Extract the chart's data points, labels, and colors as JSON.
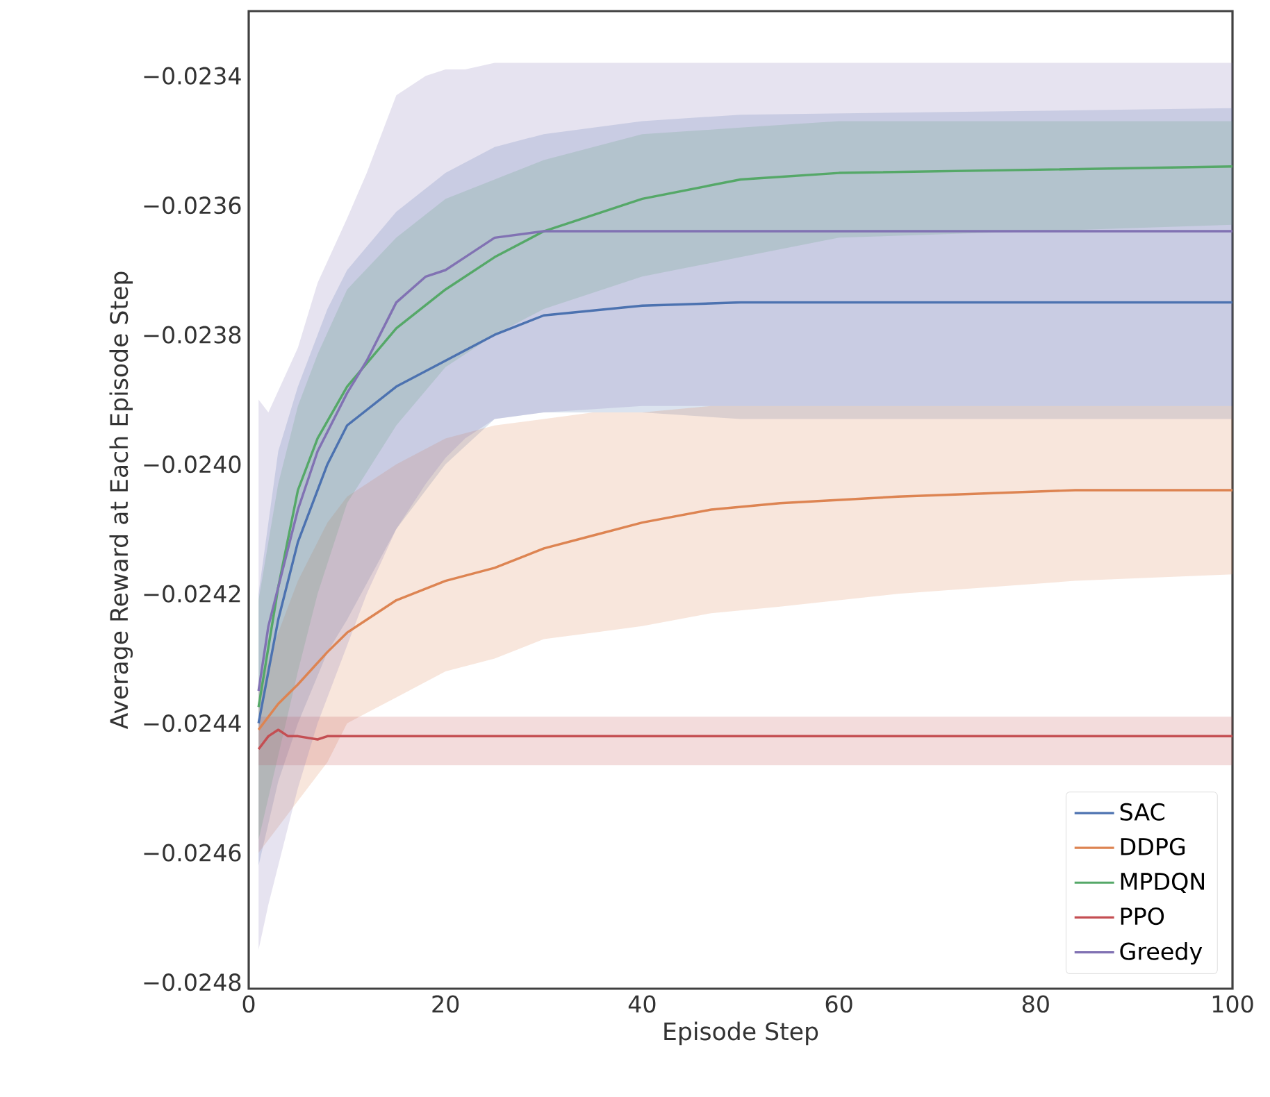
{
  "chart_data": {
    "type": "line",
    "xlabel": "Episode Step",
    "ylabel": "Average Reward at Each Episode Step",
    "xlim": [
      0,
      100
    ],
    "xticks": [
      0,
      20,
      40,
      60,
      80,
      100
    ],
    "ylim": [
      -0.02481,
      -0.0233
    ],
    "yticks": [
      {
        "value": -0.0248,
        "label": "−0.0248"
      },
      {
        "value": -0.0246,
        "label": "−0.0246"
      },
      {
        "value": -0.0244,
        "label": "−0.0244"
      },
      {
        "value": -0.0242,
        "label": "−0.0242"
      },
      {
        "value": -0.024,
        "label": "−0.0240"
      },
      {
        "value": -0.0238,
        "label": "−0.0238"
      },
      {
        "value": -0.0236,
        "label": "−0.0236"
      },
      {
        "value": -0.0234,
        "label": "−0.0234"
      }
    ],
    "grid": false,
    "legend": "bottom right",
    "series": [
      {
        "name": "SAC",
        "color": "#4c72b0",
        "x": [
          1,
          3,
          5,
          8,
          10,
          15,
          20,
          25,
          30,
          40,
          50,
          100
        ],
        "values": [
          -0.0244,
          -0.02424,
          -0.02412,
          -0.024,
          -0.02394,
          -0.02388,
          -0.02384,
          -0.0238,
          -0.02377,
          -0.023755,
          -0.02375,
          -0.02375
        ],
        "upper": [
          -0.0242,
          -0.02398,
          -0.02388,
          -0.02376,
          -0.0237,
          -0.02361,
          -0.02355,
          -0.02351,
          -0.02349,
          -0.02347,
          -0.02346,
          -0.02345
        ],
        "lower": [
          -0.02462,
          -0.02449,
          -0.0244,
          -0.02429,
          -0.02424,
          -0.0241,
          -0.024,
          -0.02393,
          -0.02392,
          -0.02392,
          -0.02393,
          -0.02393
        ]
      },
      {
        "name": "DDPG",
        "color": "#dd8452",
        "x": [
          1,
          3,
          5,
          8,
          10,
          15,
          20,
          25,
          30,
          35,
          40,
          47,
          54,
          66,
          84,
          100
        ],
        "values": [
          -0.02441,
          -0.02437,
          -0.02434,
          -0.02429,
          -0.02426,
          -0.02421,
          -0.02418,
          -0.02416,
          -0.02413,
          -0.02411,
          -0.02409,
          -0.02407,
          -0.02406,
          -0.02405,
          -0.02404,
          -0.02404
        ],
        "upper": [
          -0.02435,
          -0.02426,
          -0.02418,
          -0.02409,
          -0.02405,
          -0.024,
          -0.02396,
          -0.02394,
          -0.02393,
          -0.02392,
          -0.02392,
          -0.02391,
          -0.02391,
          -0.02391,
          -0.02391,
          -0.02391
        ],
        "lower": [
          -0.0246,
          -0.02456,
          -0.02452,
          -0.02446,
          -0.0244,
          -0.02436,
          -0.02432,
          -0.0243,
          -0.02427,
          -0.02426,
          -0.02425,
          -0.02423,
          -0.02422,
          -0.0242,
          -0.02418,
          -0.02417
        ]
      },
      {
        "name": "MPDQN",
        "color": "#55a868",
        "x": [
          1,
          3,
          5,
          7,
          10,
          15,
          20,
          25,
          30,
          40,
          50,
          60,
          100
        ],
        "values": [
          -0.024375,
          -0.02419,
          -0.02404,
          -0.02396,
          -0.02388,
          -0.02379,
          -0.02373,
          -0.02368,
          -0.02364,
          -0.02359,
          -0.02356,
          -0.02355,
          -0.02354
        ],
        "upper": [
          -0.02421,
          -0.02403,
          -0.02391,
          -0.02383,
          -0.02373,
          -0.02365,
          -0.02359,
          -0.02356,
          -0.02353,
          -0.02349,
          -0.02348,
          -0.02347,
          -0.02347
        ],
        "lower": [
          -0.02458,
          -0.02445,
          -0.02432,
          -0.0242,
          -0.02406,
          -0.02394,
          -0.02385,
          -0.0238,
          -0.02376,
          -0.02371,
          -0.02368,
          -0.02365,
          -0.02363
        ]
      },
      {
        "name": "PPO",
        "color": "#c44e52",
        "x": [
          1,
          2,
          3,
          4,
          5,
          7,
          8,
          10,
          20,
          40,
          60,
          80,
          100
        ],
        "values": [
          -0.02444,
          -0.02442,
          -0.02441,
          -0.02442,
          -0.02442,
          -0.024425,
          -0.02442,
          -0.02442,
          -0.02442,
          -0.02442,
          -0.02442,
          -0.02442,
          -0.02442
        ],
        "upper": [
          -0.02439,
          -0.02439,
          -0.02439,
          -0.02439,
          -0.02439,
          -0.02439,
          -0.02439,
          -0.02439,
          -0.02439,
          -0.02439,
          -0.02439,
          -0.02439,
          -0.02439
        ],
        "lower": [
          -0.024465,
          -0.024465,
          -0.024465,
          -0.024465,
          -0.024465,
          -0.024465,
          -0.024465,
          -0.024465,
          -0.024465,
          -0.024465,
          -0.024465,
          -0.024465,
          -0.024465
        ]
      },
      {
        "name": "Greedy",
        "color": "#8172b3",
        "x": [
          1,
          2,
          5,
          7,
          10,
          12,
          15,
          18,
          20,
          22,
          25,
          30,
          40,
          60,
          80,
          100
        ],
        "values": [
          -0.02435,
          -0.02425,
          -0.02407,
          -0.02398,
          -0.02389,
          -0.02384,
          -0.02375,
          -0.02371,
          -0.0237,
          -0.02368,
          -0.02365,
          -0.02364,
          -0.02364,
          -0.02364,
          -0.02364,
          -0.02364
        ],
        "upper": [
          -0.0239,
          -0.02392,
          -0.02382,
          -0.02372,
          -0.02362,
          -0.02355,
          -0.02343,
          -0.0234,
          -0.02339,
          -0.02339,
          -0.02338,
          -0.02338,
          -0.02338,
          -0.02338,
          -0.02338,
          -0.02338
        ],
        "lower": [
          -0.02475,
          -0.02468,
          -0.0245,
          -0.0244,
          -0.02428,
          -0.0242,
          -0.0241,
          -0.02403,
          -0.02399,
          -0.02396,
          -0.02393,
          -0.02392,
          -0.02391,
          -0.02391,
          -0.02391,
          -0.02391
        ]
      }
    ]
  }
}
